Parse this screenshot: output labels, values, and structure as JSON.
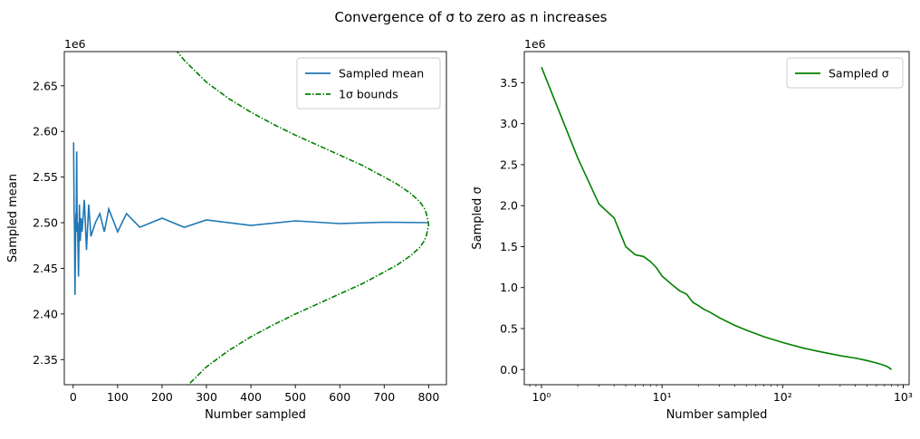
{
  "figure": {
    "suptitle": "Convergence of σ to zero as n increases"
  },
  "chart_data": [
    {
      "type": "line",
      "xlabel": "Number sampled",
      "ylabel": "Sampled mean",
      "offset_label": "1e6",
      "xlim": [
        -20,
        840
      ],
      "ylim": [
        2.3225,
        2.6875
      ],
      "xticks": [
        0,
        100,
        200,
        300,
        400,
        500,
        600,
        700,
        800
      ],
      "xtick_labels": [
        "0",
        "100",
        "200",
        "300",
        "400",
        "500",
        "600",
        "700",
        "800"
      ],
      "yticks": [
        2.35,
        2.4,
        2.45,
        2.5,
        2.55,
        2.6,
        2.65
      ],
      "ytick_labels": [
        "2.35",
        "2.40",
        "2.45",
        "2.50",
        "2.55",
        "2.60",
        "2.65"
      ],
      "grid": false,
      "legend_position": "top-right",
      "series": [
        {
          "name": "Sampled mean",
          "color": "#1f77b4",
          "style": "solid",
          "x": [
            1,
            2,
            3,
            4,
            5,
            6,
            7,
            8,
            9,
            10,
            12,
            14,
            16,
            18,
            20,
            25,
            30,
            35,
            40,
            50,
            60,
            70,
            80,
            100,
            120,
            150,
            200,
            250,
            300,
            400,
            500,
            600,
            700,
            800
          ],
          "y": [
            2.588,
            2.515,
            2.49,
            2.421,
            2.47,
            2.51,
            2.5,
            2.578,
            2.49,
            2.5,
            2.441,
            2.52,
            2.48,
            2.505,
            2.49,
            2.525,
            2.47,
            2.52,
            2.485,
            2.5,
            2.51,
            2.49,
            2.515,
            2.49,
            2.51,
            2.495,
            2.505,
            2.495,
            2.503,
            2.497,
            2.502,
            2.499,
            2.5005,
            2.5
          ]
        },
        {
          "name": "1σ bounds",
          "color": "#008000",
          "style": "dashdot",
          "center": 2.498,
          "n": [
            200,
            250,
            300,
            350,
            400,
            450,
            500,
            550,
            600,
            650,
            700,
            730,
            760,
            780,
            790,
            795,
            800
          ],
          "halfwidth": [
            0.21,
            0.18,
            0.156,
            0.138,
            0.123,
            0.11,
            0.098,
            0.087,
            0.076,
            0.065,
            0.052,
            0.044,
            0.034,
            0.025,
            0.018,
            0.012,
            0.0
          ]
        }
      ]
    },
    {
      "type": "line",
      "xscale": "log",
      "xlabel": "Number sampled",
      "ylabel": "Sampled σ",
      "offset_label": "1e6",
      "xlim": [
        0.72,
        1120
      ],
      "ylim": [
        -0.185,
        3.88
      ],
      "xticks": [
        1,
        10,
        100,
        1000
      ],
      "xtick_labels": [
        "10⁰",
        "10¹",
        "10²",
        "10³"
      ],
      "yticks": [
        0.0,
        0.5,
        1.0,
        1.5,
        2.0,
        2.5,
        3.0,
        3.5
      ],
      "ytick_labels": [
        "0.0",
        "0.5",
        "1.0",
        "1.5",
        "2.0",
        "2.5",
        "3.0",
        "3.5"
      ],
      "grid": false,
      "legend_position": "top-right",
      "series": [
        {
          "name": "Sampled σ",
          "color": "#008000",
          "style": "solid",
          "x": [
            1,
            2,
            3,
            4,
            5,
            6,
            7,
            8,
            9,
            10,
            12,
            14,
            16,
            18,
            20,
            22,
            25,
            30,
            40,
            50,
            70,
            100,
            150,
            200,
            300,
            400,
            500,
            600,
            700,
            750,
            800
          ],
          "y": [
            3.69,
            2.58,
            2.02,
            1.85,
            1.5,
            1.4,
            1.38,
            1.32,
            1.24,
            1.14,
            1.04,
            0.96,
            0.92,
            0.82,
            0.78,
            0.74,
            0.7,
            0.63,
            0.54,
            0.48,
            0.4,
            0.33,
            0.26,
            0.22,
            0.17,
            0.14,
            0.11,
            0.08,
            0.05,
            0.03,
            0.0
          ]
        }
      ]
    }
  ]
}
